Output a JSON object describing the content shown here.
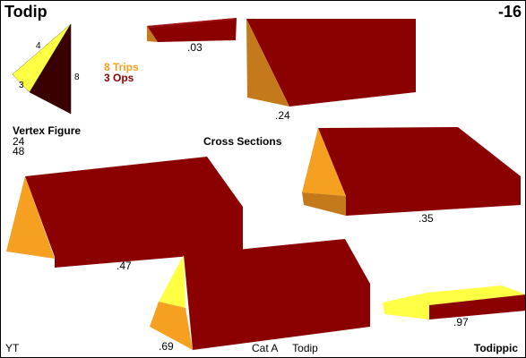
{
  "header": {
    "title": "Todip",
    "number": "-16"
  },
  "vertex_figure": {
    "label": "Vertex Figure",
    "line1": "24",
    "line2": "48",
    "edge_labels": [
      "4",
      "3",
      "8"
    ]
  },
  "legend": {
    "trips": "8 Trips",
    "ops": "3 Ops"
  },
  "sections_title": "Cross Sections",
  "sections": [
    ".03",
    ".24",
    ".35",
    ".47",
    ".69",
    ".97"
  ],
  "footer": {
    "left": "YT",
    "category": "Cat A",
    "name": "Todip",
    "right": "Todippic"
  },
  "colors": {
    "dark_red": "#8b0000",
    "orange": "#f5a020",
    "yellow": "#ffff44",
    "bronze": "#c47a1a",
    "dark_brown": "#3a0000"
  }
}
